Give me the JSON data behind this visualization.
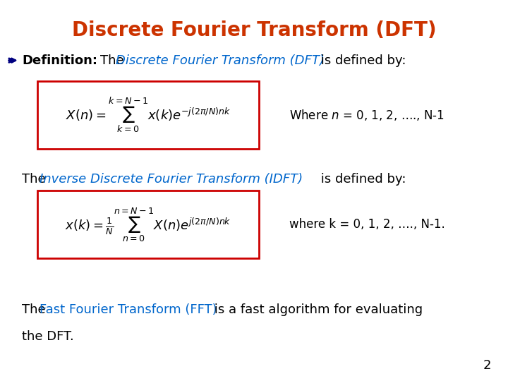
{
  "title": "Discrete Fourier Transform (DFT)",
  "title_color": "#CC3300",
  "background_color": "#FFFFFF",
  "dark_blue": "#000080",
  "blue": "#0066CC",
  "black": "#000000",
  "red_box_color": "#CC0000",
  "bullet_text_1a": "Definition: ",
  "bullet_text_1b": "The ",
  "bullet_text_1c": "Discrete Fourier Transform (DFT)",
  "bullet_text_1d": " is defined by:",
  "dft_formula": "X(n) = \\sum_{k=0}^{k=N-1} x(k)e^{-j(2\\pi/N)nk}",
  "dft_where": "Where $n$ = 0, 1, 2, …., N-1",
  "idft_intro_a": "The ",
  "idft_intro_b": "Inverse Discrete Fourier Transform (IDFT)",
  "idft_intro_c": " is defined by:",
  "idft_formula": "x(k) = \\frac{1}{N}\\sum_{n=0}^{n=N-1} X(n)e^{j(2\\pi/N)nk}",
  "idft_where": "where k = 0, 1, 2, …., N-1.",
  "fft_text_a": "The ",
  "fft_text_b": "Fast Fourier Transform (FFT)",
  "fft_text_c": " is a fast algorithm for evaluating\nthe DFT.",
  "page_number": "2"
}
